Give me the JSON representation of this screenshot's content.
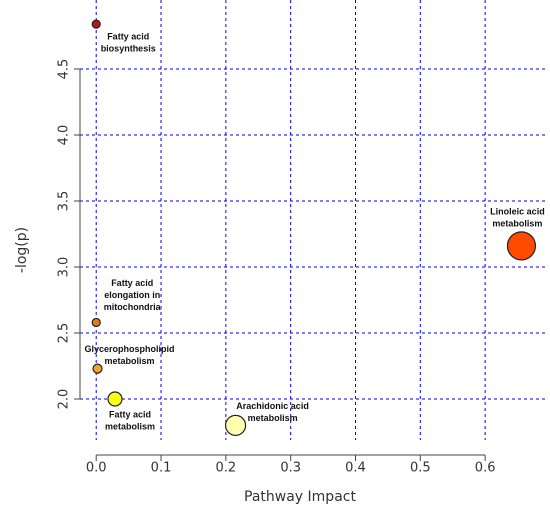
{
  "chart_data": {
    "type": "scatter",
    "x_label": "Pathway Impact",
    "y_label": "-log(p)",
    "x": [
      0.0,
      0.656,
      0.0,
      0.002,
      0.029,
      0.215
    ],
    "y": [
      4.84,
      3.16,
      2.58,
      2.23,
      2.0,
      1.8
    ],
    "sizes": [
      4,
      14,
      4,
      4.5,
      7,
      10
    ],
    "colors": [
      "#b01c1c",
      "#ff4a00",
      "#e07a1c",
      "#f0a22a",
      "#ffff10",
      "#ffffb0"
    ],
    "labels": [
      [
        "Fatty acid",
        "biosynthesis"
      ],
      [
        "Linoleic acid",
        "metabolism"
      ],
      [
        "Fatty acid",
        "elongation in",
        "mitochondria"
      ],
      [
        "Glycerophospholipid",
        "metabolism"
      ],
      [
        "Fatty acid",
        "metabolism"
      ],
      [
        "Arachidonic acid",
        "metabolism"
      ]
    ],
    "xlim": [
      -0.025,
      0.68
    ],
    "ylim": [
      1.7,
      4.95
    ],
    "xticks": [
      {
        "value": 0,
        "label": "0.0"
      },
      0.1,
      0.2,
      0.3,
      0.4,
      0.5,
      0.6
    ],
    "yticks": [
      {
        "value": 2,
        "label": "2.0"
      },
      2.5,
      {
        "value": 3,
        "label": "3.0"
      },
      3.5,
      {
        "value": 4,
        "label": "4.0"
      },
      4.5
    ],
    "grid": true,
    "grid_color": "#0000ee"
  }
}
